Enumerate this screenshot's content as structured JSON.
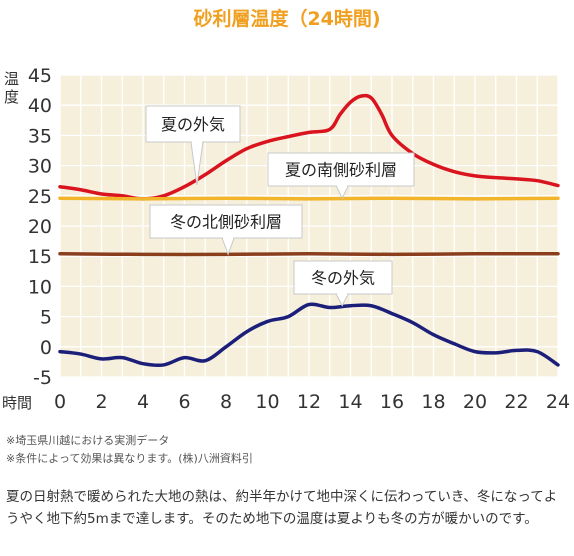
{
  "title": "砂利層温度（24時間)",
  "notes": [
    "※埼玉県川越における実測データ",
    "※条件によって効果は異なります。(株)八洲資料引"
  ],
  "description": "夏の日射熱で暖められた大地の熱は、約半年かけて地中深くに伝わっていき、冬になってようやく地下約5mまで達します。そのため地下の温度は夏よりも冬の方が暖かいのです。",
  "chart_data": {
    "type": "line",
    "ylabel": "温度",
    "xlabel": "時間",
    "xlim": [
      0,
      24
    ],
    "ylim": [
      -5,
      45
    ],
    "x_ticks": [
      "0",
      "2",
      "4",
      "6",
      "8",
      "10",
      "12",
      "14",
      "16",
      "18",
      "20",
      "22",
      "24"
    ],
    "y_ticks": [
      "45",
      "40",
      "35",
      "30",
      "25",
      "20",
      "15",
      "10",
      "5",
      "0",
      "-5"
    ],
    "grid": true,
    "background": "#f6efdc",
    "series": [
      {
        "name": "夏の外気",
        "color": "#d9141e",
        "points": [
          [
            0,
            26.5
          ],
          [
            1,
            26
          ],
          [
            2,
            25.3
          ],
          [
            3,
            25
          ],
          [
            4,
            24.5
          ],
          [
            5,
            25
          ],
          [
            6,
            26.5
          ],
          [
            7,
            28.5
          ],
          [
            8,
            30.8
          ],
          [
            9,
            32.8
          ],
          [
            10,
            34
          ],
          [
            11,
            34.8
          ],
          [
            12,
            35.5
          ],
          [
            13,
            36
          ],
          [
            13.5,
            38.5
          ],
          [
            14,
            40.5
          ],
          [
            14.5,
            41.5
          ],
          [
            15,
            41.2
          ],
          [
            15.5,
            38.5
          ],
          [
            16,
            35
          ],
          [
            17,
            32
          ],
          [
            18,
            30.2
          ],
          [
            19,
            29
          ],
          [
            20,
            28.3
          ],
          [
            21,
            28
          ],
          [
            22,
            27.8
          ],
          [
            23,
            27.5
          ],
          [
            24,
            26.7
          ]
        ]
      },
      {
        "name": "夏の南側砂利層",
        "color": "#f2b52a",
        "points": [
          [
            0,
            24.6
          ],
          [
            4,
            24.5
          ],
          [
            8,
            24.6
          ],
          [
            12,
            24.5
          ],
          [
            16,
            24.6
          ],
          [
            20,
            24.5
          ],
          [
            24,
            24.6
          ]
        ]
      },
      {
        "name": "冬の北側砂利層",
        "color": "#8a3e1c",
        "points": [
          [
            0,
            15.4
          ],
          [
            4,
            15.3
          ],
          [
            8,
            15.3
          ],
          [
            12,
            15.4
          ],
          [
            16,
            15.3
          ],
          [
            20,
            15.4
          ],
          [
            24,
            15.4
          ]
        ]
      },
      {
        "name": "冬の外気",
        "color": "#1c1f7a",
        "points": [
          [
            0,
            -0.8
          ],
          [
            1,
            -1.2
          ],
          [
            2,
            -2
          ],
          [
            3,
            -1.8
          ],
          [
            4,
            -2.8
          ],
          [
            5,
            -3
          ],
          [
            6,
            -1.8
          ],
          [
            7,
            -2.3
          ],
          [
            8,
            0
          ],
          [
            9,
            2.5
          ],
          [
            10,
            4.2
          ],
          [
            11,
            5
          ],
          [
            12,
            7
          ],
          [
            13,
            6.5
          ],
          [
            14,
            6.8
          ],
          [
            15,
            6.8
          ],
          [
            16,
            5.5
          ],
          [
            17,
            4
          ],
          [
            18,
            2
          ],
          [
            19,
            0.5
          ],
          [
            20,
            -0.8
          ],
          [
            21,
            -1
          ],
          [
            22,
            -0.6
          ],
          [
            23,
            -0.8
          ],
          [
            24,
            -3
          ]
        ]
      }
    ],
    "annotations": [
      {
        "text": "夏の外気",
        "series": 0,
        "x": 6.6,
        "y": 26.8
      },
      {
        "text": "夏の南側砂利層",
        "series": 1,
        "x": 13.6,
        "y": 24.6
      },
      {
        "text": "冬の北側砂利層",
        "series": 2,
        "x": 8.1,
        "y": 15.3
      },
      {
        "text": "冬の外気",
        "series": 3,
        "x": 13.6,
        "y": 6.8
      }
    ]
  }
}
